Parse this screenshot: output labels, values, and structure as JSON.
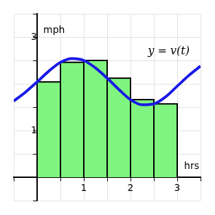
{
  "chart_data": {
    "type": "bar",
    "x_label": "hrs",
    "y_label": "mph",
    "annotation": "y = v(t)",
    "xlim": [
      -0.5,
      3.5
    ],
    "ylim": [
      -0.5,
      3.5
    ],
    "xticks": [
      {
        "value": -0.5,
        "label": null
      },
      {
        "value": 0,
        "label": null
      },
      {
        "value": 0.5,
        "label": null
      },
      1,
      {
        "value": 1.5,
        "label": null
      },
      2,
      {
        "value": 2.5,
        "label": null
      },
      3,
      {
        "value": 3.5,
        "label": null
      }
    ],
    "yticks": [
      {
        "value": -0.5,
        "label": null
      },
      {
        "value": 0,
        "label": null
      },
      {
        "value": 0.5,
        "label": null
      },
      1,
      {
        "value": 1.5,
        "label": null
      },
      {
        "value": 2,
        "label": null
      },
      {
        "value": 2.5,
        "label": null
      },
      3,
      {
        "value": 3.5,
        "label": null
      }
    ],
    "grid": true,
    "series": [
      {
        "type": "bar",
        "color": "#7ff57f",
        "bins": [
          0,
          0.5,
          1,
          1.5,
          2,
          2.5,
          3
        ],
        "values": [
          2.04,
          2.46,
          2.5,
          2.12,
          1.66,
          1.57
        ]
      },
      {
        "type": "line",
        "color": "#1a1ae6",
        "x": [
          -0.5,
          -0.25,
          0,
          0.25,
          0.5,
          0.75,
          1,
          1.25,
          1.5,
          1.75,
          2,
          2.25,
          2.5,
          2.75,
          3,
          3.25,
          3.5
        ],
        "values": [
          1.63,
          1.82,
          2.04,
          2.27,
          2.46,
          2.54,
          2.5,
          2.34,
          2.12,
          1.88,
          1.66,
          1.55,
          1.57,
          1.72,
          1.95,
          2.18,
          2.38
        ]
      }
    ]
  }
}
